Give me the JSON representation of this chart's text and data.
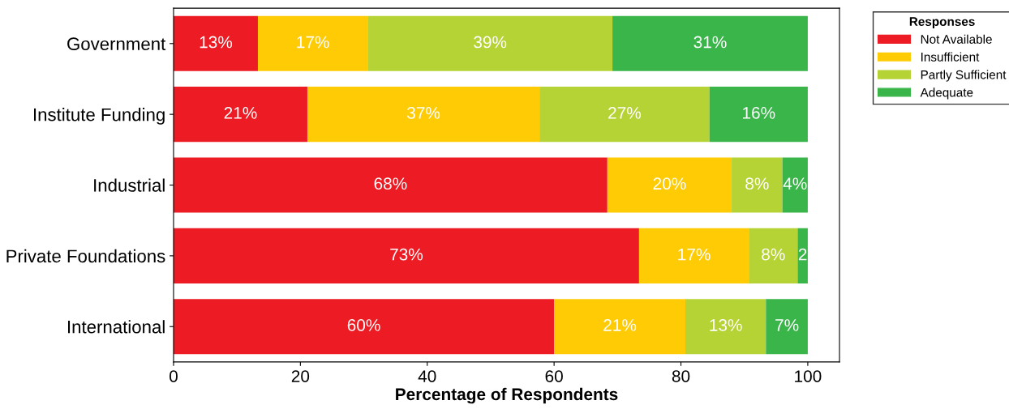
{
  "chart_data": {
    "type": "bar",
    "orientation": "horizontal",
    "stacked": true,
    "xlabel": "Percentage of Respondents",
    "legend_title": "Responses",
    "legend": "top right",
    "grid": false,
    "categories": [
      "Government",
      "Institute Funding",
      "Industrial",
      "Private Foundations",
      "International"
    ],
    "xlim": [
      0,
      105
    ],
    "xticks": [
      0,
      20,
      40,
      60,
      80,
      100
    ],
    "series": [
      {
        "name": "Not Available",
        "color": "#ed1c24",
        "values": [
          13.3,
          21.1,
          68.4,
          73.4,
          60.0
        ],
        "value_labels": [
          "13%",
          "21%",
          "68%",
          "73%",
          "60%"
        ]
      },
      {
        "name": "Insufficient",
        "color": "#ffcb05",
        "values": [
          17.3,
          36.6,
          19.6,
          17.3,
          20.7
        ],
        "value_labels": [
          "17%",
          "37%",
          "20%",
          "17%",
          "21%"
        ]
      },
      {
        "name": "Partly Sufficient",
        "color": "#b5d334",
        "values": [
          38.6,
          26.8,
          8.0,
          7.7,
          12.7
        ],
        "value_labels": [
          "39%",
          "27%",
          "8%",
          "8%",
          "13%"
        ]
      },
      {
        "name": "Adequate",
        "color": "#39b54a",
        "values": [
          30.8,
          15.5,
          4.0,
          1.6,
          6.6
        ],
        "value_labels": [
          "31%",
          "16%",
          "4%",
          "2",
          "7%"
        ]
      }
    ]
  }
}
